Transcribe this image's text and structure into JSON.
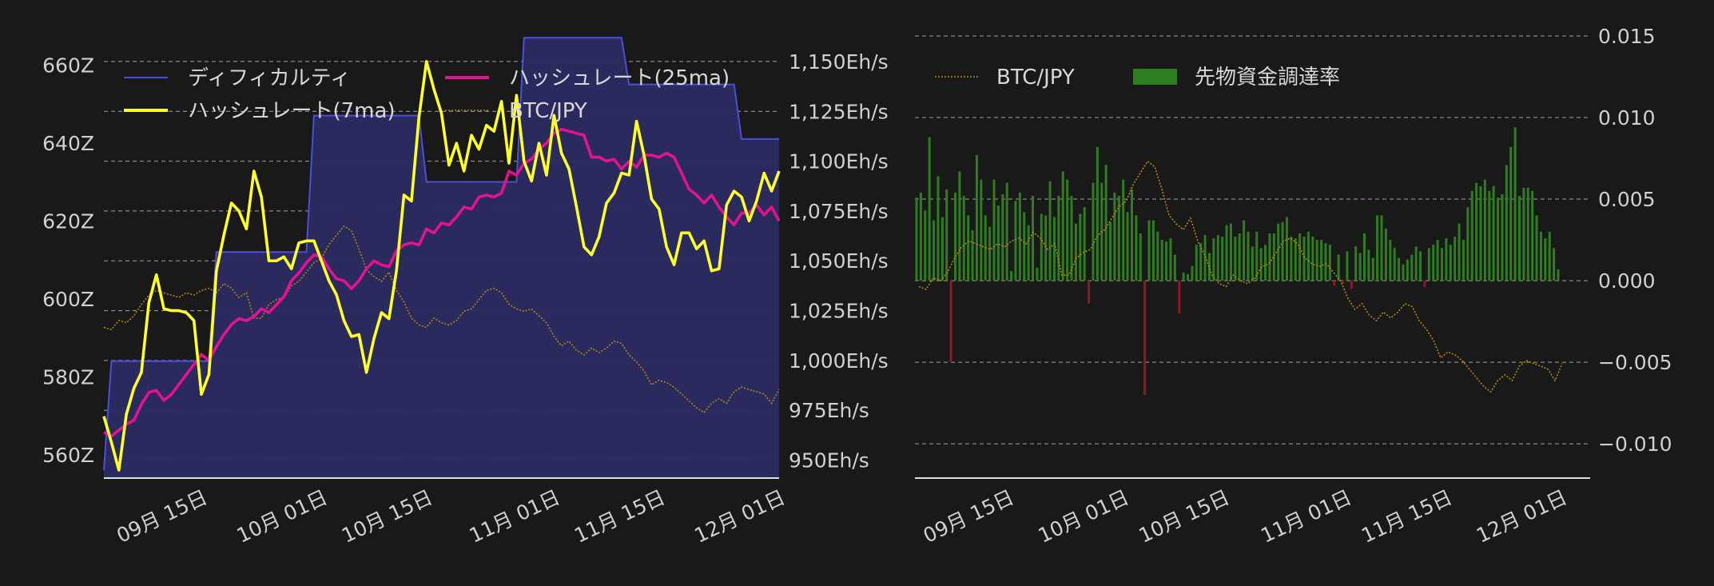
{
  "colors": {
    "difficulty": "#4a4fd8",
    "difficulty_fill": "#2b2b63",
    "hash7": "#ffff2a",
    "hash25": "#e3128f",
    "btc": "#b8860b",
    "funding_pos": "#2e7d1f",
    "funding_neg": "#8b1a22"
  },
  "chart_data": [
    {
      "type": "line",
      "legend": [
        "ディフィカルティ",
        "ハッシュレート(25ma)",
        "ハッシュレート(7ma)",
        "BTC/JPY"
      ],
      "xticks": [
        {
          "label": "09月 15日",
          "day": 14
        },
        {
          "label": "10月 01日",
          "day": 30
        },
        {
          "label": "10月 15日",
          "day": 44
        },
        {
          "label": "11月 01日",
          "day": 61
        },
        {
          "label": "11月 15日",
          "day": 75
        },
        {
          "label": "12月 01日",
          "day": 91
        }
      ],
      "x_range_days": [
        0,
        90
      ],
      "y_left": {
        "ticks": [
          "560Z",
          "580Z",
          "600Z",
          "620Z",
          "640Z",
          "660Z"
        ],
        "values": [
          560,
          580,
          600,
          620,
          640,
          660
        ],
        "range": [
          554,
          666
        ]
      },
      "y_right": {
        "ticks": [
          "950Eh/s",
          "975Eh/s",
          "1,000Eh/s",
          "1,025Eh/s",
          "1,050Eh/s",
          "1,075Eh/s",
          "1,100Eh/s",
          "1,125Eh/s",
          "1,150Eh/s"
        ],
        "values": [
          950,
          975,
          1000,
          1025,
          1050,
          1075,
          1100,
          1125,
          1150
        ],
        "range": [
          941,
          1160
        ]
      },
      "series": [
        {
          "name": "ディフィカルティ",
          "unit": "Z",
          "steps": [
            [
              0,
              556
            ],
            [
              1,
              584
            ],
            [
              14,
              584
            ],
            [
              15,
              612
            ],
            [
              27,
              612
            ],
            [
              28,
              647
            ],
            [
              42,
              647
            ],
            [
              43,
              630
            ],
            [
              55,
              630
            ],
            [
              56,
              667
            ],
            [
              69,
              667
            ],
            [
              70,
              655
            ],
            [
              84,
              655
            ],
            [
              85,
              641
            ],
            [
              90,
              641
            ]
          ]
        },
        {
          "name": "ハッシュレート(25ma)",
          "unit": "Eh/s",
          "values": [
            964,
            962,
            965,
            968,
            970,
            978,
            984,
            985,
            980,
            983,
            988,
            993,
            998,
            1003,
            1000,
            1007,
            1013,
            1018,
            1021,
            1020,
            1022,
            1026,
            1024,
            1028,
            1032,
            1040,
            1044,
            1049,
            1053,
            1052,
            1046,
            1041,
            1040,
            1036,
            1040,
            1046,
            1050,
            1048,
            1047,
            1055,
            1058,
            1059,
            1058,
            1066,
            1064,
            1069,
            1068,
            1072,
            1077,
            1076,
            1082,
            1083,
            1082,
            1084,
            1095,
            1093,
            1099,
            1101,
            1106,
            1109,
            1114,
            1116,
            1115,
            1114,
            1113,
            1102,
            1102,
            1100,
            1101,
            1096,
            1100,
            1097,
            1103,
            1103,
            1102,
            1104,
            1102,
            1094,
            1086,
            1083,
            1079,
            1083,
            1077,
            1072,
            1068,
            1074,
            1074,
            1078,
            1073,
            1077,
            1070
          ]
        },
        {
          "name": "ハッシュレート(7ma)",
          "unit": "Eh/s",
          "values": [
            972,
            959,
            945,
            973,
            986,
            994,
            1029,
            1043,
            1026,
            1025,
            1025,
            1024,
            1020,
            983,
            993,
            1045,
            1063,
            1079,
            1075,
            1066,
            1095,
            1082,
            1050,
            1050,
            1052,
            1046,
            1059,
            1060,
            1060,
            1050,
            1040,
            1033,
            1020,
            1012,
            1013,
            994,
            1011,
            1024,
            1021,
            1045,
            1083,
            1080,
            1122,
            1150,
            1136,
            1124,
            1098,
            1109,
            1095,
            1113,
            1106,
            1118,
            1115,
            1130,
            1099,
            1133,
            1100,
            1090,
            1109,
            1093,
            1123,
            1104,
            1096,
            1077,
            1057,
            1053,
            1062,
            1079,
            1084,
            1094,
            1093,
            1120,
            1103,
            1081,
            1076,
            1057,
            1048,
            1064,
            1064,
            1056,
            1060,
            1045,
            1046,
            1078,
            1085,
            1082,
            1070,
            1080,
            1094,
            1085,
            1095
          ]
        },
        {
          "name": "BTC/JPY",
          "values": [
            0.42,
            0.41,
            0.45,
            0.44,
            0.47,
            0.52,
            0.56,
            0.58,
            0.57,
            0.56,
            0.55,
            0.57,
            0.56,
            0.58,
            0.59,
            0.57,
            0.61,
            0.59,
            0.55,
            0.57,
            0.46,
            0.46,
            0.52,
            0.54,
            0.55,
            0.6,
            0.62,
            0.66,
            0.7,
            0.72,
            0.78,
            0.82,
            0.86,
            0.84,
            0.76,
            0.67,
            0.64,
            0.62,
            0.66,
            0.58,
            0.53,
            0.46,
            0.43,
            0.42,
            0.46,
            0.44,
            0.43,
            0.45,
            0.49,
            0.5,
            0.54,
            0.58,
            0.59,
            0.57,
            0.52,
            0.5,
            0.49,
            0.5,
            0.47,
            0.44,
            0.38,
            0.34,
            0.36,
            0.32,
            0.3,
            0.33,
            0.31,
            0.33,
            0.36,
            0.35,
            0.3,
            0.27,
            0.23,
            0.17,
            0.19,
            0.18,
            0.16,
            0.13,
            0.1,
            0.07,
            0.05,
            0.09,
            0.11,
            0.09,
            0.14,
            0.16,
            0.15,
            0.14,
            0.13,
            0.09,
            0.15
          ]
        }
      ]
    },
    {
      "type": "bar",
      "legend": [
        "BTC/JPY",
        "先物資金調達率"
      ],
      "xticks": [
        {
          "label": "09月 15日",
          "day": 14
        },
        {
          "label": "10月 01日",
          "day": 30
        },
        {
          "label": "10月 15日",
          "day": 44
        },
        {
          "label": "11月 01日",
          "day": 61
        },
        {
          "label": "11月 15日",
          "day": 75
        },
        {
          "label": "12月 01日",
          "day": 91
        }
      ],
      "x_range_days": [
        0,
        94
      ],
      "y": {
        "ticks": [
          "−0.010",
          "−0.005",
          "0.000",
          "0.005",
          "0.010",
          "0.015"
        ],
        "values": [
          -0.01,
          -0.005,
          0,
          0.005,
          0.01,
          0.015
        ],
        "range": [
          -0.0121,
          0.015
        ]
      },
      "series": [
        {
          "name": "先物資金調達率",
          "values": [
            0.0051,
            0.0054,
            0.0043,
            0.0088,
            0.0037,
            0.0064,
            0.0039,
            0.0056,
            -0.005,
            0.0054,
            0.0067,
            0.0052,
            0.004,
            0.0031,
            0.0077,
            0.0062,
            0.004,
            0.0033,
            0.0062,
            0.0046,
            0.0053,
            0.006,
            0.0006,
            0.0049,
            0.0054,
            0.0042,
            0.0034,
            0.0052,
            0.0008,
            0.0041,
            0.004,
            0.0061,
            0.0039,
            0.0052,
            0.0067,
            0.0062,
            0.0052,
            0.0035,
            0.0041,
            0.0045,
            -0.0014,
            0.006,
            0.0082,
            0.006,
            0.0071,
            0.0036,
            0.0054,
            0.0052,
            0.0062,
            0.0042,
            0.0056,
            0.004,
            0.0029,
            -0.007,
            0.0037,
            0.0037,
            0.003,
            0.0025,
            0.0024,
            0.0026,
            0.0016,
            -0.002,
            0.0005,
            0.0004,
            0.0009,
            0.0022,
            0.0023,
            0.0028,
            0.0017,
            0.0026,
            0.0028,
            0.0027,
            0.0034,
            0.0035,
            0.0027,
            0.0029,
            0.0037,
            0.003,
            0.0021,
            0.003,
            0.002,
            0.0022,
            0.0029,
            0.0029,
            0.0035,
            0.0036,
            0.0039,
            0.0027,
            0.0026,
            0.0029,
            0.0027,
            0.003,
            0.0027,
            0.0025,
            0.0025,
            0.0023,
            0.0022,
            -0.0003,
            0.0016,
            -0.0002,
            0.0018,
            -0.0005,
            0.0021,
            0.0017,
            0.0029,
            0.0019,
            0.0014,
            0.004,
            0.004,
            0.0032,
            0.0025,
            0.002,
            0.0014,
            0.001,
            0.0013,
            0.0016,
            0.0021,
            0.0018,
            -0.0004,
            0.002,
            0.0022,
            0.0025,
            0.002,
            0.0026,
            0.0022,
            0.0027,
            0.0035,
            0.0025,
            0.0045,
            0.0055,
            0.006,
            0.0058,
            0.0062,
            0.0055,
            0.0058,
            0.0051,
            0.0053,
            0.0071,
            0.0082,
            0.0094,
            0.0052,
            0.0057,
            0.0057,
            0.0055,
            0.004,
            0.003,
            0.0026,
            0.003,
            0.002,
            0.0007
          ]
        },
        {
          "name": "BTC/JPY",
          "values": [
            0.42,
            0.41,
            0.45,
            0.44,
            0.47,
            0.52,
            0.56,
            0.58,
            0.57,
            0.56,
            0.55,
            0.57,
            0.56,
            0.58,
            0.59,
            0.57,
            0.61,
            0.59,
            0.55,
            0.57,
            0.46,
            0.46,
            0.52,
            0.54,
            0.55,
            0.6,
            0.62,
            0.66,
            0.7,
            0.72,
            0.78,
            0.82,
            0.86,
            0.84,
            0.76,
            0.67,
            0.64,
            0.62,
            0.66,
            0.58,
            0.53,
            0.46,
            0.43,
            0.42,
            0.46,
            0.44,
            0.43,
            0.45,
            0.49,
            0.5,
            0.54,
            0.58,
            0.59,
            0.57,
            0.52,
            0.5,
            0.49,
            0.5,
            0.47,
            0.44,
            0.38,
            0.34,
            0.36,
            0.32,
            0.3,
            0.33,
            0.31,
            0.33,
            0.36,
            0.35,
            0.3,
            0.27,
            0.23,
            0.17,
            0.19,
            0.18,
            0.16,
            0.13,
            0.1,
            0.07,
            0.05,
            0.09,
            0.11,
            0.09,
            0.14,
            0.16,
            0.15,
            0.14,
            0.13,
            0.09,
            0.15
          ]
        }
      ]
    }
  ]
}
